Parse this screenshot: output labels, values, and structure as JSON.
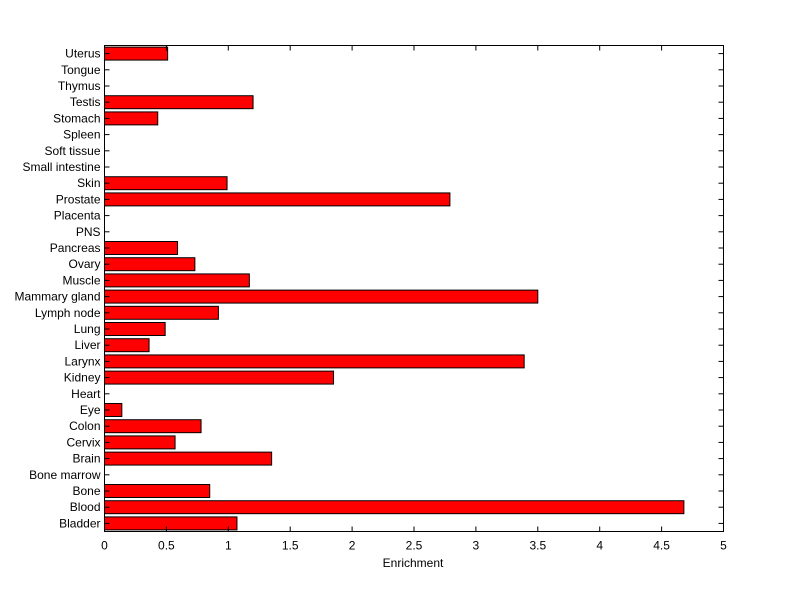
{
  "chart_data": {
    "type": "bar",
    "orientation": "horizontal",
    "title": "",
    "xlabel": "Enrichment",
    "ylabel": "",
    "xlim": [
      0,
      5
    ],
    "xticks": [
      "0",
      "0.5",
      "1",
      "1.5",
      "2",
      "2.5",
      "3",
      "3.5",
      "4",
      "4.5",
      "5"
    ],
    "grid": false,
    "legend": "none",
    "bar_color": "#ff0000",
    "categories": [
      "Bladder",
      "Blood",
      "Bone",
      "Bone marrow",
      "Brain",
      "Cervix",
      "Colon",
      "Eye",
      "Heart",
      "Kidney",
      "Larynx",
      "Liver",
      "Lung",
      "Lymph node",
      "Mammary gland",
      "Muscle",
      "Ovary",
      "Pancreas",
      "PNS",
      "Placenta",
      "Prostate",
      "Skin",
      "Small intestine",
      "Soft tissue",
      "Spleen",
      "Stomach",
      "Testis",
      "Thymus",
      "Tongue",
      "Uterus"
    ],
    "values": [
      1.07,
      4.68,
      0.85,
      0,
      1.35,
      0.57,
      0.78,
      0.14,
      0,
      1.85,
      3.39,
      0.36,
      0.49,
      0.92,
      3.5,
      1.17,
      0.73,
      0.59,
      0,
      0,
      2.79,
      0.99,
      0,
      0,
      0,
      0.43,
      1.2,
      0,
      0,
      0.51
    ]
  }
}
